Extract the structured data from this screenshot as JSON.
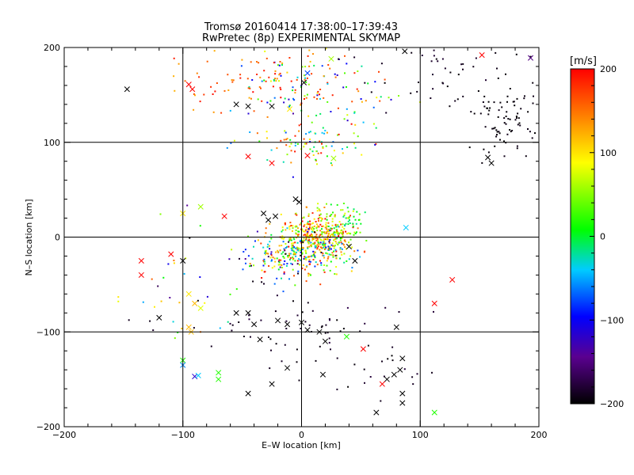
{
  "chart_data": [
    {
      "type": "scatter",
      "title": "Tromsø 20160414 17:38:00–17:39:43",
      "subtitle": "RwPretec (8p) EXPERIMENTAL SKYMAP",
      "xlabel": "E–W location [km]",
      "ylabel": "N–S location [km]",
      "xlim": [
        -200,
        200
      ],
      "ylim": [
        -200,
        200
      ],
      "xticks": [
        "−200",
        "−100",
        "0",
        "100",
        "200"
      ],
      "yticks": [
        "−200",
        "−100",
        "0",
        "100",
        "200"
      ],
      "grid": true,
      "markers": "dots and crosses, colour = line-of-sight velocity",
      "point_groups": [
        {
          "cx": 15,
          "cy": 5,
          "sx": 14,
          "sy": 12,
          "n": 260,
          "v": [
            40,
            200
          ]
        },
        {
          "cx": 5,
          "cy": -15,
          "sx": 22,
          "sy": 12,
          "n": 240,
          "v": [
            -120,
            200
          ]
        },
        {
          "cx": -10,
          "cy": -20,
          "sx": 20,
          "sy": 14,
          "n": 120,
          "v": [
            -200,
            200
          ]
        },
        {
          "cx": 35,
          "cy": 15,
          "sx": 10,
          "sy": 10,
          "n": 70,
          "v": [
            -20,
            80
          ]
        },
        {
          "cx": 5,
          "cy": 95,
          "sx": 25,
          "sy": 10,
          "n": 70,
          "v": [
            -80,
            200
          ]
        },
        {
          "cx": 10,
          "cy": 150,
          "sx": 35,
          "sy": 25,
          "n": 130,
          "v": [
            -140,
            200
          ]
        },
        {
          "cx": -40,
          "cy": 165,
          "sx": 40,
          "sy": 22,
          "n": 90,
          "v": [
            120,
            200
          ]
        },
        {
          "cx": 175,
          "cy": 125,
          "sx": 20,
          "sy": 18,
          "n": 90,
          "v": [
            -200,
            -190
          ]
        },
        {
          "cx": 120,
          "cy": 170,
          "sx": 35,
          "sy": 20,
          "n": 40,
          "v": [
            -200,
            -180
          ]
        },
        {
          "cx": -30,
          "cy": -95,
          "sx": 40,
          "sy": 20,
          "n": 45,
          "v": [
            -200,
            -180
          ]
        },
        {
          "cx": -110,
          "cy": -40,
          "sx": 30,
          "sy": 40,
          "n": 35,
          "v": [
            -200,
            200
          ]
        },
        {
          "cx": 60,
          "cy": -120,
          "sx": 40,
          "sy": 30,
          "n": 35,
          "v": [
            -200,
            -170
          ]
        }
      ],
      "crosses": [
        {
          "x": -147,
          "y": 156,
          "v": -200
        },
        {
          "x": -95,
          "y": 161,
          "v": 200
        },
        {
          "x": -92,
          "y": 156,
          "v": 200
        },
        {
          "x": -55,
          "y": 140,
          "v": -200
        },
        {
          "x": -45,
          "y": 138,
          "v": -200
        },
        {
          "x": -25,
          "y": 138,
          "v": -200
        },
        {
          "x": -10,
          "y": 135,
          "v": 100
        },
        {
          "x": 2,
          "y": 163,
          "v": -200
        },
        {
          "x": 5,
          "y": 173,
          "v": -80
        },
        {
          "x": 25,
          "y": 188,
          "v": 60
        },
        {
          "x": 87,
          "y": 196,
          "v": -200
        },
        {
          "x": 152,
          "y": 192,
          "v": 200
        },
        {
          "x": 193,
          "y": 189,
          "v": -150
        },
        {
          "x": 160,
          "y": 78,
          "v": -200
        },
        {
          "x": 157,
          "y": 84,
          "v": -200
        },
        {
          "x": -25,
          "y": 78,
          "v": 200
        },
        {
          "x": -45,
          "y": 85,
          "v": 200
        },
        {
          "x": 5,
          "y": 86,
          "v": 200
        },
        {
          "x": 27,
          "y": 83,
          "v": 60
        },
        {
          "x": -100,
          "y": 25,
          "v": 100
        },
        {
          "x": -65,
          "y": 22,
          "v": 200
        },
        {
          "x": -85,
          "y": 32,
          "v": 60
        },
        {
          "x": -5,
          "y": 40,
          "v": -200
        },
        {
          "x": -2,
          "y": 37,
          "v": -200
        },
        {
          "x": -32,
          "y": 25,
          "v": -200
        },
        {
          "x": -28,
          "y": 18,
          "v": -200
        },
        {
          "x": -22,
          "y": 22,
          "v": -200
        },
        {
          "x": 88,
          "y": 10,
          "v": -40
        },
        {
          "x": -135,
          "y": -25,
          "v": 200
        },
        {
          "x": -110,
          "y": -18,
          "v": 200
        },
        {
          "x": -100,
          "y": -25,
          "v": -200
        },
        {
          "x": -95,
          "y": -60,
          "v": 100
        },
        {
          "x": -90,
          "y": -70,
          "v": 120
        },
        {
          "x": -85,
          "y": -75,
          "v": 80
        },
        {
          "x": -95,
          "y": -95,
          "v": 120
        },
        {
          "x": -93,
          "y": -100,
          "v": 120
        },
        {
          "x": -120,
          "y": -85,
          "v": -200
        },
        {
          "x": -55,
          "y": -80,
          "v": -200
        },
        {
          "x": -45,
          "y": -80,
          "v": -200
        },
        {
          "x": -40,
          "y": -92,
          "v": -200
        },
        {
          "x": -20,
          "y": -88,
          "v": -200
        },
        {
          "x": -12,
          "y": -92,
          "v": -200
        },
        {
          "x": 0,
          "y": -90,
          "v": -200
        },
        {
          "x": 5,
          "y": -98,
          "v": -200
        },
        {
          "x": 15,
          "y": -100,
          "v": -200
        },
        {
          "x": -35,
          "y": -108,
          "v": -200
        },
        {
          "x": 20,
          "y": -110,
          "v": -200
        },
        {
          "x": 38,
          "y": -105,
          "v": 20
        },
        {
          "x": 80,
          "y": -95,
          "v": -200
        },
        {
          "x": 85,
          "y": -128,
          "v": -200
        },
        {
          "x": 83,
          "y": -140,
          "v": -200
        },
        {
          "x": 78,
          "y": -145,
          "v": -200
        },
        {
          "x": 72,
          "y": -150,
          "v": -200
        },
        {
          "x": 68,
          "y": -155,
          "v": 200
        },
        {
          "x": 85,
          "y": -165,
          "v": -200
        },
        {
          "x": 85,
          "y": -175,
          "v": -200
        },
        {
          "x": 112,
          "y": -185,
          "v": 20
        },
        {
          "x": 127,
          "y": -45,
          "v": 200
        },
        {
          "x": 112,
          "y": -70,
          "v": 200
        },
        {
          "x": -100,
          "y": -130,
          "v": 20
        },
        {
          "x": -100,
          "y": -135,
          "v": -60
        },
        {
          "x": -90,
          "y": -147,
          "v": -120
        },
        {
          "x": -87,
          "y": -146,
          "v": -40
        },
        {
          "x": -70,
          "y": -143,
          "v": 20
        },
        {
          "x": -70,
          "y": -150,
          "v": 20
        },
        {
          "x": -45,
          "y": -165,
          "v": -200
        },
        {
          "x": -25,
          "y": -155,
          "v": -200
        },
        {
          "x": -12,
          "y": -138,
          "v": -200
        },
        {
          "x": 18,
          "y": -145,
          "v": -200
        },
        {
          "x": 52,
          "y": -118,
          "v": 200
        },
        {
          "x": 63,
          "y": -185,
          "v": -200
        },
        {
          "x": -135,
          "y": -40,
          "v": 200
        },
        {
          "x": 45,
          "y": -25,
          "v": -200
        },
        {
          "x": 40,
          "y": -10,
          "v": -200
        }
      ]
    },
    {
      "type": "heatmap",
      "colorbar_label": "[m/s]",
      "vmin": -200,
      "vmax": 200,
      "ticks": [
        "200",
        "100",
        "0",
        "−100",
        "−200"
      ],
      "tick_values": [
        200,
        100,
        0,
        -100,
        -200
      ],
      "colormap": "black-purple-blue-cyan-green-yellow-red"
    }
  ]
}
